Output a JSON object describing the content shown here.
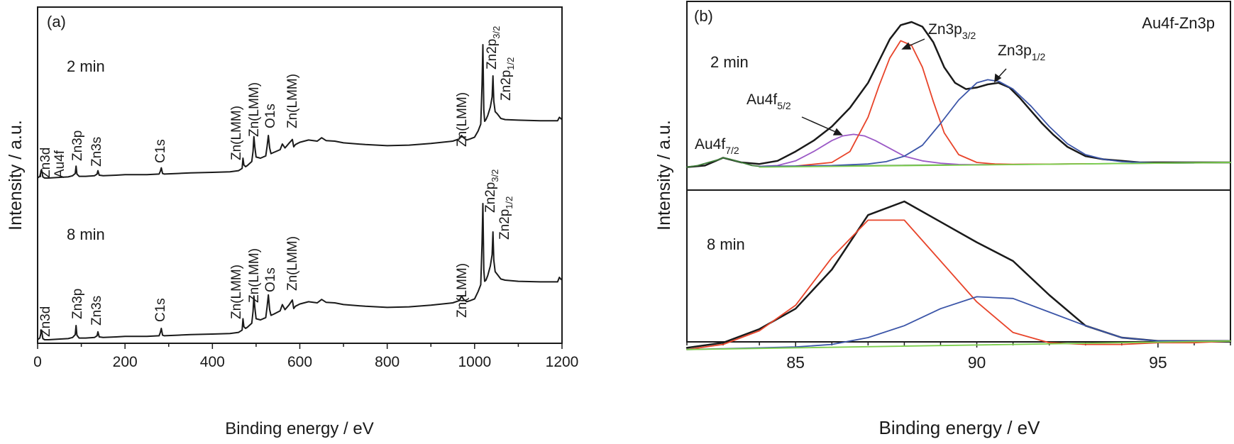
{
  "chart_data": [
    {
      "type": "line",
      "panel_label": "(a)",
      "xlabel": "Binding energy / eV",
      "ylabel": "Intensity / a.u.",
      "xlim": [
        0,
        1200
      ],
      "x_ticks": [
        0,
        200,
        400,
        600,
        800,
        1000,
        1200
      ],
      "y_ticks_shown": false,
      "series": [
        {
          "name": "2 min",
          "color": "#1a1a1a",
          "x": [
            0,
            5,
            9,
            12,
            16,
            25,
            45,
            70,
            80,
            86,
            88,
            90,
            95,
            110,
            130,
            136,
            138,
            141,
            150,
            180,
            200,
            250,
            278,
            281,
            283,
            286,
            290,
            320,
            350,
            400,
            440,
            460,
            468,
            470,
            472,
            476,
            480,
            490,
            493,
            495,
            497,
            500,
            510,
            522,
            525,
            528,
            531,
            534,
            540,
            555,
            560,
            566,
            575,
            583,
            586,
            590,
            600,
            620,
            640,
            650,
            660,
            680,
            700,
            750,
            800,
            850,
            900,
            950,
            965,
            970,
            975,
            982,
            990,
            1000,
            1008,
            1014,
            1017,
            1019,
            1021,
            1023,
            1026,
            1030,
            1036,
            1040,
            1042,
            1044,
            1047,
            1052,
            1060,
            1070,
            1100,
            1150,
            1190,
            1194,
            1197,
            1200
          ],
          "y": [
            0.05,
            0.08,
            0.2,
            0.07,
            0.05,
            0.05,
            0.06,
            0.07,
            0.09,
            0.13,
            0.26,
            0.12,
            0.08,
            0.08,
            0.09,
            0.12,
            0.18,
            0.1,
            0.09,
            0.1,
            0.11,
            0.11,
            0.12,
            0.17,
            0.23,
            0.13,
            0.12,
            0.13,
            0.14,
            0.15,
            0.16,
            0.18,
            0.22,
            0.4,
            0.28,
            0.25,
            0.27,
            0.34,
            0.52,
            0.78,
            0.6,
            0.42,
            0.4,
            0.44,
            0.6,
            0.8,
            0.58,
            0.48,
            0.5,
            0.55,
            0.65,
            0.58,
            0.66,
            0.73,
            0.6,
            0.64,
            0.68,
            0.72,
            0.7,
            0.76,
            0.71,
            0.7,
            0.67,
            0.64,
            0.62,
            0.63,
            0.66,
            0.7,
            0.74,
            0.8,
            0.76,
            0.72,
            0.74,
            0.77,
            0.88,
            1.0,
            1.7,
            2.4,
            1.25,
            1.05,
            1.08,
            1.15,
            1.3,
            1.48,
            1.85,
            1.4,
            1.22,
            1.18,
            1.1,
            1.08,
            1.07,
            1.06,
            1.06,
            1.12,
            1.1,
            1.08
          ]
        },
        {
          "name": "8 min",
          "color": "#1a1a1a",
          "x": [
            0,
            5,
            9,
            12,
            16,
            25,
            45,
            70,
            80,
            86,
            88,
            90,
            95,
            110,
            130,
            136,
            138,
            141,
            150,
            180,
            200,
            250,
            278,
            281,
            283,
            286,
            290,
            320,
            350,
            400,
            440,
            460,
            468,
            470,
            472,
            476,
            480,
            490,
            493,
            495,
            497,
            500,
            510,
            522,
            525,
            528,
            531,
            534,
            540,
            555,
            560,
            566,
            575,
            583,
            586,
            590,
            600,
            620,
            640,
            650,
            660,
            680,
            700,
            750,
            800,
            850,
            900,
            950,
            965,
            970,
            975,
            982,
            990,
            1000,
            1008,
            1014,
            1017,
            1019,
            1021,
            1023,
            1026,
            1030,
            1036,
            1040,
            1042,
            1044,
            1047,
            1052,
            1060,
            1070,
            1100,
            1150,
            1190,
            1194,
            1197,
            1200
          ],
          "y": [
            0.05,
            0.08,
            0.22,
            0.07,
            0.05,
            0.05,
            0.06,
            0.07,
            0.09,
            0.14,
            0.3,
            0.13,
            0.08,
            0.08,
            0.09,
            0.12,
            0.19,
            0.1,
            0.09,
            0.1,
            0.11,
            0.11,
            0.12,
            0.18,
            0.25,
            0.13,
            0.12,
            0.13,
            0.14,
            0.15,
            0.16,
            0.18,
            0.22,
            0.42,
            0.28,
            0.25,
            0.27,
            0.34,
            0.55,
            0.82,
            0.62,
            0.42,
            0.4,
            0.44,
            0.62,
            0.84,
            0.58,
            0.48,
            0.5,
            0.56,
            0.67,
            0.58,
            0.66,
            0.75,
            0.6,
            0.64,
            0.68,
            0.72,
            0.7,
            0.76,
            0.71,
            0.7,
            0.67,
            0.64,
            0.62,
            0.63,
            0.66,
            0.7,
            0.74,
            0.82,
            0.76,
            0.72,
            0.74,
            0.77,
            0.9,
            1.02,
            1.75,
            2.45,
            1.28,
            1.08,
            1.1,
            1.18,
            1.35,
            1.55,
            1.95,
            1.45,
            1.25,
            1.2,
            1.12,
            1.1,
            1.08,
            1.07,
            1.07,
            1.15,
            1.12,
            1.1
          ]
        }
      ],
      "annotations": [
        {
          "text": "2 min"
        },
        {
          "text": "8 min"
        },
        {
          "text": "Zn3d"
        },
        {
          "text": "Au4f"
        },
        {
          "text": "Zn3p"
        },
        {
          "text": "Zn3s"
        },
        {
          "text": "C1s"
        },
        {
          "text": "Zn(LMM)"
        },
        {
          "text": "O1s"
        },
        {
          "text": "Zn2p",
          "subscript": "3/2"
        },
        {
          "text": "Zn2p",
          "subscript": "1/2"
        }
      ]
    },
    {
      "type": "line",
      "panel_label": "(b)",
      "title": "Au4f-Zn3p",
      "xlabel": "Binding energy / eV",
      "ylabel": "Intensity / a.u.",
      "xlim": [
        82,
        97
      ],
      "x_ticks": [
        85,
        90,
        95
      ],
      "y_ticks_shown": false,
      "subpanels": [
        {
          "label": "2 min",
          "ylim": [
            0,
            1.0
          ],
          "series": [
            {
              "role": "measured",
              "color": "#1a1a1a",
              "x": [
                82.0,
                82.5,
                83.0,
                83.5,
                84.0,
                84.5,
                85.0,
                85.5,
                86.0,
                86.5,
                87.0,
                87.3,
                87.6,
                87.9,
                88.2,
                88.5,
                88.8,
                89.1,
                89.4,
                89.7,
                90.0,
                90.3,
                90.6,
                90.9,
                91.2,
                91.5,
                91.8,
                92.1,
                92.5,
                93.0,
                93.5,
                94.0,
                94.5,
                95.0,
                95.5,
                96.0,
                96.5,
                97.0
              ],
              "y": [
                0.02,
                0.03,
                0.08,
                0.05,
                0.04,
                0.06,
                0.12,
                0.19,
                0.28,
                0.4,
                0.56,
                0.7,
                0.84,
                0.93,
                0.95,
                0.92,
                0.82,
                0.66,
                0.56,
                0.52,
                0.53,
                0.55,
                0.56,
                0.53,
                0.46,
                0.38,
                0.3,
                0.23,
                0.15,
                0.09,
                0.07,
                0.06,
                0.05,
                0.05,
                0.05,
                0.05,
                0.05,
                0.05
              ]
            },
            {
              "role": "fit Au4f7/2 region",
              "color": "#3f7d3a",
              "x": [
                82.0,
                82.3,
                82.6,
                82.9,
                83.0,
                83.2,
                83.5,
                83.8,
                84.0,
                85,
                86,
                87,
                88,
                89,
                90,
                91,
                92,
                93,
                94,
                95,
                96,
                97
              ],
              "y": [
                0.02,
                0.03,
                0.05,
                0.07,
                0.08,
                0.07,
                0.05,
                0.03,
                0.025,
                0.025,
                0.027,
                0.029,
                0.031,
                0.033,
                0.035,
                0.037,
                0.039,
                0.041,
                0.043,
                0.045,
                0.047,
                0.049
              ]
            },
            {
              "role": "Au4f5/2",
              "color": "#9b59c6",
              "x": [
                84.0,
                84.5,
                85.0,
                85.5,
                86.0,
                86.3,
                86.6,
                86.9,
                87.2,
                87.6,
                88.0,
                88.5,
                89.0,
                89.5,
                90.0,
                91.0,
                92.0
              ],
              "y": [
                0.025,
                0.03,
                0.06,
                0.12,
                0.19,
                0.22,
                0.23,
                0.22,
                0.19,
                0.14,
                0.09,
                0.06,
                0.045,
                0.037,
                0.035,
                0.037,
                0.039
              ]
            },
            {
              "role": "Zn3p3/2",
              "color": "#e8442a",
              "x": [
                84.0,
                85.0,
                86.0,
                86.5,
                87.0,
                87.3,
                87.6,
                87.9,
                88.2,
                88.5,
                88.8,
                89.1,
                89.5,
                90.0,
                90.5,
                91.0,
                92.0,
                93.0
              ],
              "y": [
                0.025,
                0.027,
                0.05,
                0.12,
                0.34,
                0.54,
                0.72,
                0.83,
                0.8,
                0.66,
                0.44,
                0.24,
                0.1,
                0.05,
                0.04,
                0.038,
                0.039,
                0.041
              ]
            },
            {
              "role": "Zn3p1/2",
              "color": "#3b55a8",
              "x": [
                84.0,
                85,
                86,
                87,
                87.5,
                88,
                88.5,
                89,
                89.5,
                90,
                90.3,
                90.6,
                91,
                91.5,
                92,
                92.5,
                93,
                93.5,
                94,
                95,
                96
              ],
              "y": [
                0.025,
                0.027,
                0.03,
                0.04,
                0.055,
                0.09,
                0.16,
                0.3,
                0.45,
                0.56,
                0.58,
                0.57,
                0.52,
                0.41,
                0.28,
                0.17,
                0.1,
                0.07,
                0.055,
                0.045,
                0.047
              ]
            },
            {
              "role": "baseline",
              "color": "#7dcf4e",
              "x": [
                84.0,
                97.0
              ],
              "y": [
                0.02,
                0.05
              ]
            }
          ]
        },
        {
          "label": "8 min",
          "ylim": [
            0,
            1.0
          ],
          "series": [
            {
              "role": "measured",
              "color": "#1a1a1a",
              "x": [
                82,
                83,
                84,
                85,
                86,
                87,
                88,
                89,
                90,
                91,
                92,
                93,
                94,
                95,
                96,
                97
              ],
              "y": [
                0.04,
                0.07,
                0.15,
                0.27,
                0.5,
                0.82,
                0.9,
                0.78,
                0.66,
                0.55,
                0.35,
                0.17,
                0.1,
                0.08,
                0.08,
                0.08
              ]
            },
            {
              "role": "Zn3p3/2",
              "color": "#e8442a",
              "x": [
                82,
                83,
                84,
                85,
                86,
                87,
                88,
                89,
                90,
                91,
                92,
                93,
                94,
                95,
                96,
                97
              ],
              "y": [
                0.03,
                0.06,
                0.14,
                0.29,
                0.57,
                0.79,
                0.79,
                0.55,
                0.31,
                0.13,
                0.07,
                0.06,
                0.06,
                0.07,
                0.07,
                0.08
              ]
            },
            {
              "role": "Zn3p1/2",
              "color": "#3b55a8",
              "x": [
                82,
                83,
                84,
                85,
                86,
                87,
                88,
                89,
                90,
                91,
                92,
                93,
                94,
                95,
                96,
                97
              ],
              "y": [
                0.03,
                0.035,
                0.04,
                0.045,
                0.06,
                0.1,
                0.17,
                0.27,
                0.34,
                0.33,
                0.25,
                0.17,
                0.1,
                0.08,
                0.08,
                0.08
              ]
            },
            {
              "role": "baseline",
              "color": "#7dcf4e",
              "x": [
                82,
                97
              ],
              "y": [
                0.03,
                0.08
              ]
            }
          ]
        }
      ],
      "annotations": [
        {
          "text": "Au4f",
          "subscript": "7/2"
        },
        {
          "text": "Au4f",
          "subscript": "5/2"
        },
        {
          "text": "Zn3p",
          "subscript": "3/2"
        },
        {
          "text": "Zn3p",
          "subscript": "1/2"
        }
      ]
    }
  ]
}
